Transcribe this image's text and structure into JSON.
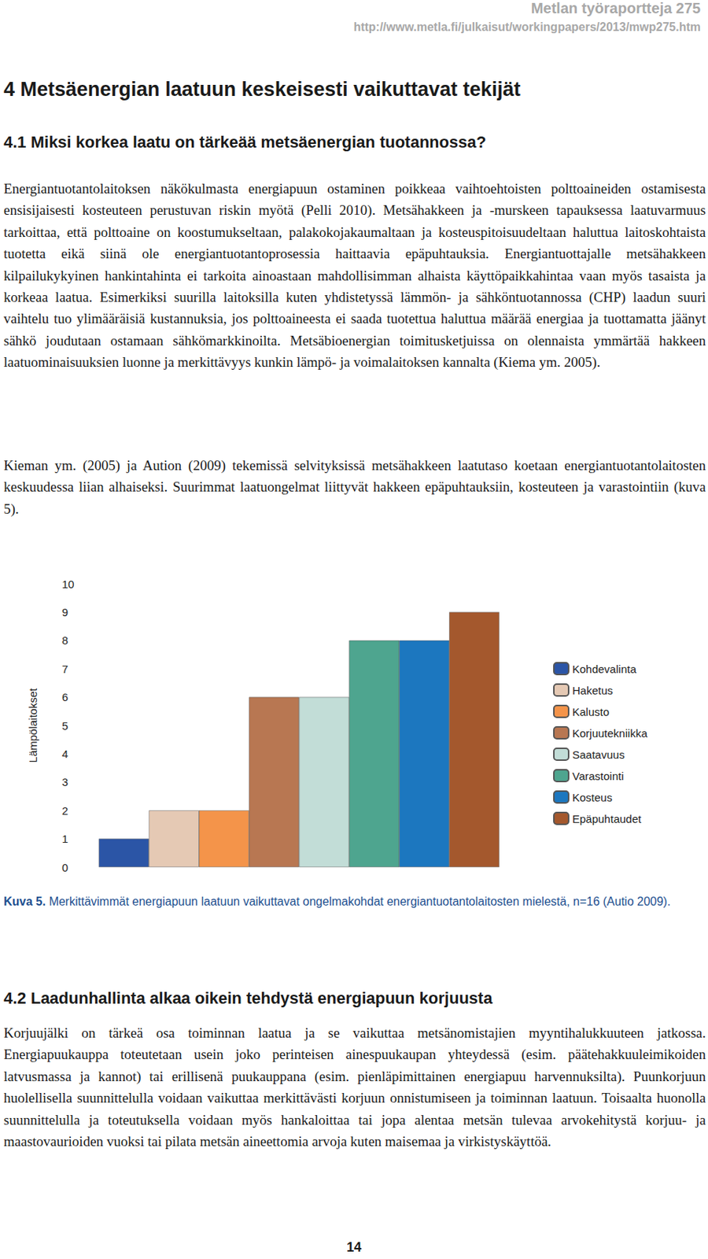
{
  "header": {
    "series": "Metlan työraportteja 275",
    "url": "http://www.metla.fi/julkaisut/workingpapers/2013/mwp275.htm"
  },
  "chapter_heading": "4 Metsäenergian laatuun keskeisesti vaikuttavat tekijät",
  "section_1": {
    "heading": "4.1 Miksi korkea laatu on tärkeää metsäenergian tuotannossa?",
    "paragraphs": [
      "Energiantuotantolaitoksen näkökulmasta energiapuun ostaminen poikkeaa vaihtoehtoisten polttoaineiden ostamisesta ensisijaisesti kosteuteen perustuvan riskin myötä (Pelli 2010). Metsähakkeen ja -murskeen tapauksessa laatuvarmuus tarkoittaa, että polttoaine on koostumukseltaan, palakokojakaumaltaan ja kosteuspitoisuudeltaan haluttua laitoskohtaista tuotetta eikä siinä ole energiantuotantoprosessia haittaavia epäpuhtauksia. Energiantuottajalle metsähakkeen kilpailukykyinen hankintahinta ei tarkoita ainoastaan mahdollisimman alhaista käyttöpaikkahintaa vaan myös tasaista ja korkeaa laatua. Esimerkiksi suurilla laitoksilla kuten yhdistetyssä lämmön- ja sähköntuotannossa (CHP) laadun suuri vaihtelu tuo ylimääräisiä kustannuksia, jos polttoaineesta ei saada tuotettua haluttua määrää energiaa ja tuottamatta jäänyt sähkö joudutaan ostamaan sähkömarkkinoilta. Metsäbioenergian toimitusketjuissa on olennaista ymmärtää hakkeen laatuominaisuuksien luonne ja merkittävyys kunkin lämpö- ja voimalaitoksen kannalta (Kiema ym. 2005).",
      "Kieman ym. (2005) ja Aution (2009) tekemissä selvityksissä metsähakkeen laatutaso koetaan energiantuotantolaitosten keskuudessa liian alhaiseksi. Suurimmat laatuongelmat liittyvät hakkeen epäpuhtauksiin, kosteuteen ja varastointiin (kuva 5)."
    ]
  },
  "chart_data": {
    "type": "bar",
    "y_label": "Lämpölaitokset",
    "categories": [
      "Kohdevalinta",
      "Haketus",
      "Kalusto",
      "Korjuutekniikka",
      "Saatavuus",
      "Varastointi",
      "Kosteus",
      "Epäpuhtaudet"
    ],
    "values": [
      1,
      2,
      2,
      6,
      6,
      8,
      8,
      9
    ],
    "colors": [
      "#2b55a6",
      "#e5c9b4",
      "#f4944a",
      "#b87752",
      "#c2ddd7",
      "#4ea58f",
      "#1c77bf",
      "#a4582d"
    ],
    "ylim": [
      0,
      10
    ],
    "yticks": [
      0,
      1,
      2,
      3,
      4,
      5,
      6,
      7,
      8,
      9,
      10
    ],
    "grid": false,
    "legend": "right",
    "tick_labels": "y"
  },
  "figure_caption": {
    "label": "Kuva 5.",
    "text": "Merkittävimmät energiapuun laatuun vaikuttavat ongelmakohdat energiantuotantolaitosten mielestä, n=16 (Autio 2009)."
  },
  "section_2": {
    "heading": "4.2 Laadunhallinta alkaa oikein tehdystä energiapuun korjuusta",
    "paragraphs": [
      "Korjuujälki on tärkeä osa toiminnan laatua ja se vaikuttaa metsänomistajien myyntihalukkuuteen jatkossa. Energiapuukauppa toteutetaan usein joko perinteisen ainespuukaupan yhteydessä (esim. päätehakkuuleimikoiden latvusmassa ja kannot) tai erillisenä puukauppana (esim. pienläpimittainen energiapuu harvennuksilta). Puunkorjuun huolellisella suunnittelulla voidaan vaikuttaa merkittävästi korjuun onnistumiseen ja toiminnan laatuun. Toisaalta huonolla suunnittelulla ja toteutuksella voidaan myös hankaloittaa tai jopa alentaa metsän tulevaa arvokehitystä korjuu- ja maastovaurioiden vuoksi tai pilata metsän aineettomia arvoja kuten maisemaa ja virkistyskäyttöä."
    ]
  },
  "page_number": "14"
}
